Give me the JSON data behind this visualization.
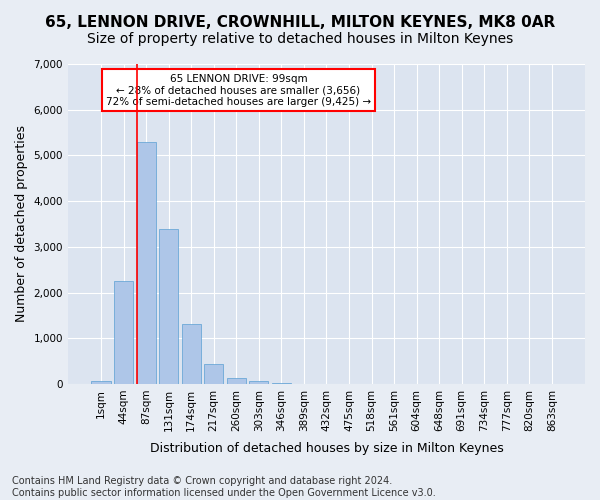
{
  "title1": "65, LENNON DRIVE, CROWNHILL, MILTON KEYNES, MK8 0AR",
  "title2": "Size of property relative to detached houses in Milton Keynes",
  "xlabel": "Distribution of detached houses by size in Milton Keynes",
  "ylabel": "Number of detached properties",
  "footnote": "Contains HM Land Registry data © Crown copyright and database right 2024.\nContains public sector information licensed under the Open Government Licence v3.0.",
  "bin_labels": [
    "1sqm",
    "44sqm",
    "87sqm",
    "131sqm",
    "174sqm",
    "217sqm",
    "260sqm",
    "303sqm",
    "346sqm",
    "389sqm",
    "432sqm",
    "475sqm",
    "518sqm",
    "561sqm",
    "604sqm",
    "648sqm",
    "691sqm",
    "734sqm",
    "777sqm",
    "820sqm",
    "863sqm"
  ],
  "bar_values": [
    60,
    2250,
    5300,
    3400,
    1300,
    430,
    130,
    65,
    20,
    5,
    2,
    0,
    0,
    0,
    0,
    0,
    0,
    0,
    0,
    0,
    0
  ],
  "bar_color": "#aec6e8",
  "bar_edge_color": "#5a9fd4",
  "red_line_bin_index": 2,
  "annotation_text": "65 LENNON DRIVE: 99sqm\n← 28% of detached houses are smaller (3,656)\n72% of semi-detached houses are larger (9,425) →",
  "annotation_box_color": "white",
  "annotation_box_edge": "red",
  "ylim": [
    0,
    7000
  ],
  "yticks": [
    0,
    1000,
    2000,
    3000,
    4000,
    5000,
    6000,
    7000
  ],
  "background_color": "#e8edf4",
  "plot_background": "#dce4f0",
  "grid_color": "white",
  "title1_fontsize": 11,
  "title2_fontsize": 10,
  "xlabel_fontsize": 9,
  "ylabel_fontsize": 9,
  "tick_fontsize": 7.5,
  "footnote_fontsize": 7,
  "annotation_fontsize": 7.5
}
